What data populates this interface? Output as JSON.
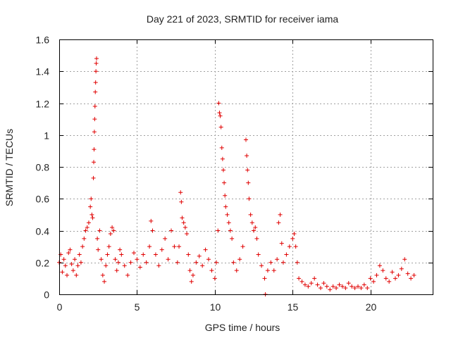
{
  "chart_data": {
    "type": "scatter",
    "title": "Day 221 of 2023, SRMTID for receiver iama",
    "xlabel": "GPS time / hours",
    "ylabel": "SRMTID / TECUs",
    "xlim": [
      0,
      24
    ],
    "ylim": [
      0,
      1.6
    ],
    "xticks": [
      0,
      5,
      10,
      15,
      20
    ],
    "xtick_labels": [
      "0",
      "5",
      "10",
      "15",
      "20"
    ],
    "yticks": [
      0,
      0.2,
      0.4,
      0.6,
      0.8,
      1,
      1.2,
      1.4,
      1.6
    ],
    "ytick_labels": [
      "0",
      "0.2",
      "0.4",
      "0.6",
      "0.8",
      "1",
      "1.2",
      "1.4",
      "1.6"
    ],
    "grid": true,
    "marker": "+",
    "marker_color": "#e00000",
    "series": [
      {
        "name": "SRMTID",
        "points": [
          [
            0.0,
            0.2
          ],
          [
            0.1,
            0.25
          ],
          [
            0.2,
            0.14
          ],
          [
            0.3,
            0.22
          ],
          [
            0.4,
            0.18
          ],
          [
            0.5,
            0.12
          ],
          [
            0.6,
            0.26
          ],
          [
            0.7,
            0.28
          ],
          [
            0.8,
            0.19
          ],
          [
            0.9,
            0.15
          ],
          [
            1.0,
            0.22
          ],
          [
            1.1,
            0.12
          ],
          [
            1.2,
            0.18
          ],
          [
            1.3,
            0.25
          ],
          [
            1.4,
            0.2
          ],
          [
            1.5,
            0.3
          ],
          [
            1.6,
            0.35
          ],
          [
            1.7,
            0.4
          ],
          [
            1.8,
            0.42
          ],
          [
            1.9,
            0.45
          ],
          [
            2.0,
            0.55
          ],
          [
            2.05,
            0.6
          ],
          [
            2.1,
            0.5
          ],
          [
            2.15,
            0.48
          ],
          [
            2.2,
            0.73
          ],
          [
            2.22,
            0.83
          ],
          [
            2.24,
            0.91
          ],
          [
            2.26,
            1.02
          ],
          [
            2.28,
            1.1
          ],
          [
            2.3,
            1.18
          ],
          [
            2.32,
            1.27
          ],
          [
            2.34,
            1.33
          ],
          [
            2.36,
            1.4
          ],
          [
            2.38,
            1.45
          ],
          [
            2.4,
            1.48
          ],
          [
            2.45,
            0.35
          ],
          [
            2.5,
            0.28
          ],
          [
            2.6,
            0.4
          ],
          [
            2.7,
            0.22
          ],
          [
            2.8,
            0.12
          ],
          [
            2.9,
            0.08
          ],
          [
            3.0,
            0.18
          ],
          [
            3.1,
            0.25
          ],
          [
            3.2,
            0.3
          ],
          [
            3.3,
            0.38
          ],
          [
            3.4,
            0.42
          ],
          [
            3.5,
            0.4
          ],
          [
            3.6,
            0.22
          ],
          [
            3.7,
            0.15
          ],
          [
            3.8,
            0.2
          ],
          [
            3.9,
            0.28
          ],
          [
            4.0,
            0.25
          ],
          [
            4.2,
            0.18
          ],
          [
            4.4,
            0.12
          ],
          [
            4.6,
            0.2
          ],
          [
            4.8,
            0.26
          ],
          [
            5.0,
            0.22
          ],
          [
            5.2,
            0.17
          ],
          [
            5.4,
            0.25
          ],
          [
            5.6,
            0.2
          ],
          [
            5.8,
            0.3
          ],
          [
            5.9,
            0.46
          ],
          [
            6.0,
            0.4
          ],
          [
            6.2,
            0.25
          ],
          [
            6.4,
            0.18
          ],
          [
            6.6,
            0.28
          ],
          [
            6.8,
            0.35
          ],
          [
            7.0,
            0.22
          ],
          [
            7.2,
            0.4
          ],
          [
            7.4,
            0.3
          ],
          [
            7.6,
            0.2
          ],
          [
            7.7,
            0.3
          ],
          [
            7.8,
            0.64
          ],
          [
            7.85,
            0.58
          ],
          [
            7.9,
            0.48
          ],
          [
            8.0,
            0.45
          ],
          [
            8.1,
            0.42
          ],
          [
            8.2,
            0.38
          ],
          [
            8.3,
            0.25
          ],
          [
            8.4,
            0.15
          ],
          [
            8.5,
            0.08
          ],
          [
            8.6,
            0.12
          ],
          [
            8.8,
            0.2
          ],
          [
            9.0,
            0.24
          ],
          [
            9.2,
            0.18
          ],
          [
            9.4,
            0.28
          ],
          [
            9.6,
            0.22
          ],
          [
            9.8,
            0.15
          ],
          [
            10.0,
            0.1
          ],
          [
            10.1,
            0.2
          ],
          [
            10.2,
            0.4
          ],
          [
            10.25,
            1.2
          ],
          [
            10.3,
            1.14
          ],
          [
            10.35,
            1.12
          ],
          [
            10.4,
            1.05
          ],
          [
            10.45,
            0.92
          ],
          [
            10.5,
            0.85
          ],
          [
            10.55,
            0.78
          ],
          [
            10.6,
            0.7
          ],
          [
            10.65,
            0.62
          ],
          [
            10.7,
            0.55
          ],
          [
            10.8,
            0.5
          ],
          [
            10.9,
            0.45
          ],
          [
            11.0,
            0.4
          ],
          [
            11.1,
            0.35
          ],
          [
            11.2,
            0.2
          ],
          [
            11.4,
            0.15
          ],
          [
            11.6,
            0.22
          ],
          [
            11.8,
            0.3
          ],
          [
            12.0,
            0.97
          ],
          [
            12.05,
            0.87
          ],
          [
            12.1,
            0.78
          ],
          [
            12.15,
            0.7
          ],
          [
            12.2,
            0.6
          ],
          [
            12.3,
            0.5
          ],
          [
            12.4,
            0.45
          ],
          [
            12.5,
            0.4
          ],
          [
            12.6,
            0.42
          ],
          [
            12.7,
            0.35
          ],
          [
            12.8,
            0.25
          ],
          [
            13.0,
            0.18
          ],
          [
            13.2,
            0.1
          ],
          [
            13.25,
            0.0
          ],
          [
            13.4,
            0.15
          ],
          [
            13.6,
            0.2
          ],
          [
            13.8,
            0.15
          ],
          [
            14.0,
            0.22
          ],
          [
            14.1,
            0.45
          ],
          [
            14.2,
            0.5
          ],
          [
            14.3,
            0.32
          ],
          [
            14.4,
            0.2
          ],
          [
            14.6,
            0.25
          ],
          [
            14.8,
            0.3
          ],
          [
            15.0,
            0.35
          ],
          [
            15.1,
            0.38
          ],
          [
            15.2,
            0.3
          ],
          [
            15.3,
            0.2
          ],
          [
            15.4,
            0.1
          ],
          [
            15.6,
            0.08
          ],
          [
            15.8,
            0.06
          ],
          [
            16.0,
            0.05
          ],
          [
            16.2,
            0.07
          ],
          [
            16.4,
            0.1
          ],
          [
            16.6,
            0.06
          ],
          [
            16.8,
            0.04
          ],
          [
            17.0,
            0.07
          ],
          [
            17.2,
            0.05
          ],
          [
            17.4,
            0.03
          ],
          [
            17.6,
            0.05
          ],
          [
            17.8,
            0.04
          ],
          [
            18.0,
            0.06
          ],
          [
            18.2,
            0.05
          ],
          [
            18.4,
            0.04
          ],
          [
            18.6,
            0.07
          ],
          [
            18.8,
            0.05
          ],
          [
            19.0,
            0.04
          ],
          [
            19.2,
            0.05
          ],
          [
            19.4,
            0.04
          ],
          [
            19.6,
            0.06
          ],
          [
            19.8,
            0.04
          ],
          [
            20.0,
            0.1
          ],
          [
            20.2,
            0.08
          ],
          [
            20.4,
            0.12
          ],
          [
            20.6,
            0.18
          ],
          [
            20.8,
            0.15
          ],
          [
            21.0,
            0.1
          ],
          [
            21.2,
            0.08
          ],
          [
            21.4,
            0.14
          ],
          [
            21.6,
            0.1
          ],
          [
            21.8,
            0.12
          ],
          [
            22.0,
            0.16
          ],
          [
            22.2,
            0.22
          ],
          [
            22.4,
            0.13
          ],
          [
            22.6,
            0.1
          ],
          [
            22.8,
            0.12
          ]
        ]
      }
    ]
  }
}
